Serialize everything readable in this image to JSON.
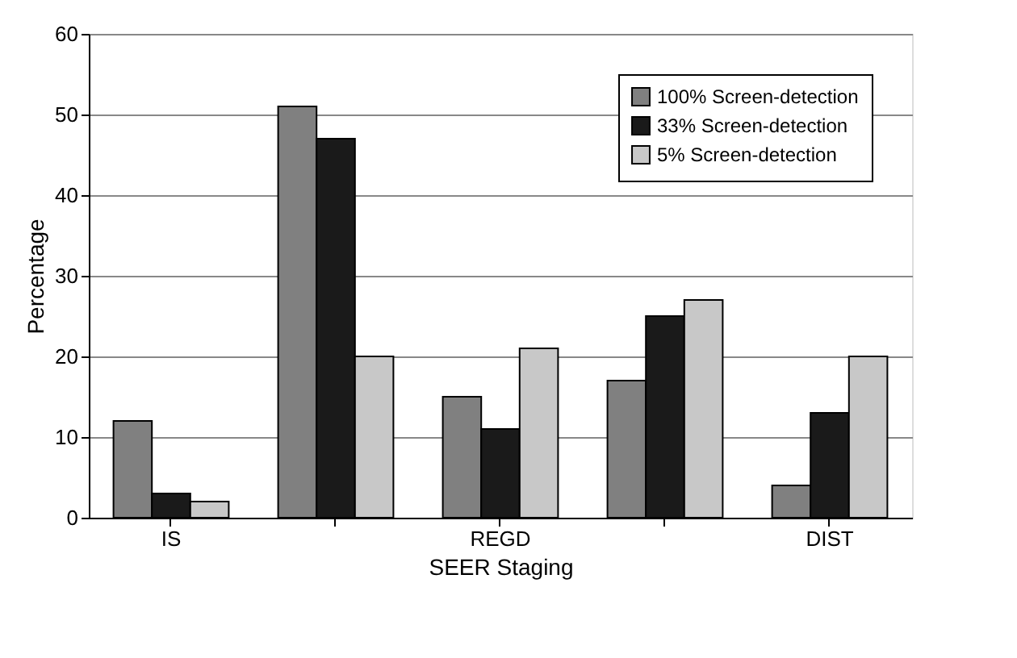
{
  "chart_data": {
    "type": "bar",
    "xlabel": "SEER Staging",
    "ylabel": "Percentage",
    "categories": [
      "IS",
      null,
      "REGD",
      null,
      "DIST"
    ],
    "series": [
      {
        "name": "100% Screen-detection",
        "color": "#808080",
        "values": [
          12,
          51,
          15,
          17,
          4
        ]
      },
      {
        "name": "33% Screen-detection",
        "color": "#1a1a1a",
        "values": [
          3,
          47,
          11,
          25,
          13
        ]
      },
      {
        "name": "5% Screen-detection",
        "color": "#c8c8c8",
        "values": [
          2,
          20,
          21,
          27,
          20
        ]
      }
    ],
    "ylim": [
      0,
      60
    ],
    "yticks": [
      0,
      10,
      20,
      30,
      40,
      50,
      60
    ],
    "grid": "y",
    "legend": "top right"
  }
}
